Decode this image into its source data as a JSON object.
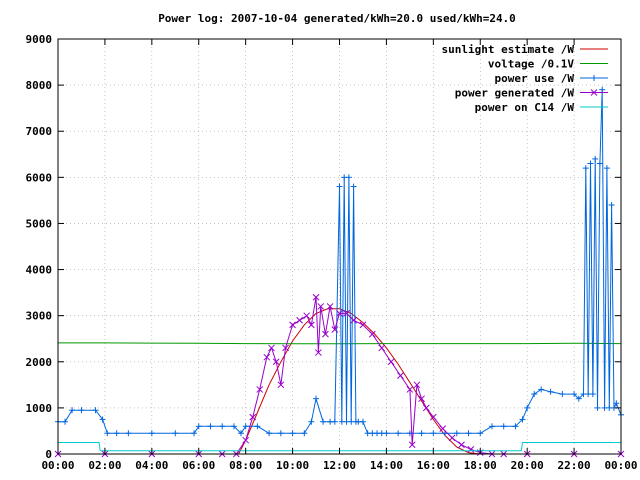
{
  "chart_data": {
    "type": "line",
    "title": "Power log: 2007-10-04 generated/kWh=20.0 used/kWh=24.0",
    "xlabel": "",
    "ylabel": "",
    "xlim": [
      0,
      24
    ],
    "ylim": [
      0,
      9000
    ],
    "x_ticks": [
      0,
      2,
      4,
      6,
      8,
      10,
      12,
      14,
      16,
      18,
      20,
      22,
      24
    ],
    "x_tick_labels": [
      "00:00",
      "02:00",
      "04:00",
      "06:00",
      "08:00",
      "10:00",
      "12:00",
      "14:00",
      "16:00",
      "18:00",
      "20:00",
      "22:00",
      "00:00"
    ],
    "y_ticks": [
      0,
      1000,
      2000,
      3000,
      4000,
      5000,
      6000,
      7000,
      8000,
      9000
    ],
    "y_tick_labels": [
      "0",
      "1000",
      "2000",
      "3000",
      "4000",
      "5000",
      "6000",
      "7000",
      "8000",
      "9000"
    ],
    "grid": true,
    "legend_position": "top-right",
    "series": [
      {
        "name": "sunlight estimate /W",
        "color": "#cc0000",
        "marker": "none",
        "x": [
          7.7,
          8.0,
          8.5,
          9.0,
          9.5,
          10.0,
          10.5,
          11.0,
          11.5,
          12.0,
          12.5,
          13.0,
          13.5,
          14.0,
          14.5,
          15.0,
          15.5,
          16.0,
          16.5,
          17.0,
          17.5,
          18.0
        ],
        "y": [
          0,
          300,
          900,
          1500,
          2000,
          2450,
          2800,
          3050,
          3150,
          3150,
          3050,
          2850,
          2600,
          2300,
          1950,
          1550,
          1150,
          750,
          400,
          150,
          30,
          0
        ]
      },
      {
        "name": "voltage /0.1V",
        "color": "#009900",
        "marker": "none",
        "x": [
          0,
          2,
          4,
          6,
          8,
          10,
          12,
          14,
          16,
          18,
          20,
          22,
          24
        ],
        "y": [
          2410,
          2410,
          2405,
          2400,
          2395,
          2390,
          2390,
          2395,
          2395,
          2395,
          2395,
          2400,
          2395
        ]
      },
      {
        "name": "power use /W",
        "color": "#0066dd",
        "marker": "plus",
        "x": [
          0.0,
          0.3,
          0.6,
          1.0,
          1.6,
          1.9,
          2.1,
          2.5,
          3.0,
          4.0,
          5.0,
          5.8,
          6.0,
          6.5,
          7.0,
          7.5,
          7.8,
          8.0,
          8.5,
          9.0,
          9.5,
          10.0,
          10.5,
          10.8,
          11.0,
          11.3,
          11.6,
          11.8,
          12.0,
          12.1,
          12.2,
          12.3,
          12.4,
          12.5,
          12.6,
          12.7,
          12.8,
          13.0,
          13.2,
          13.4,
          13.6,
          13.8,
          14.0,
          14.5,
          15.0,
          15.5,
          16.0,
          16.5,
          17.0,
          17.5,
          18.0,
          18.5,
          19.0,
          19.5,
          19.8,
          20.0,
          20.3,
          20.6,
          21.0,
          21.5,
          22.0,
          22.2,
          22.4,
          22.5,
          22.6,
          22.7,
          22.8,
          22.9,
          23.0,
          23.1,
          23.2,
          23.3,
          23.4,
          23.5,
          23.6,
          23.7,
          23.8,
          24.0
        ],
        "y": [
          700,
          700,
          950,
          950,
          950,
          750,
          450,
          450,
          450,
          450,
          450,
          450,
          600,
          600,
          600,
          600,
          450,
          600,
          600,
          450,
          450,
          450,
          450,
          700,
          1200,
          700,
          700,
          700,
          5800,
          700,
          6000,
          700,
          6000,
          700,
          5800,
          700,
          700,
          700,
          450,
          450,
          450,
          450,
          450,
          450,
          450,
          450,
          450,
          450,
          450,
          450,
          450,
          600,
          600,
          600,
          750,
          1000,
          1300,
          1400,
          1350,
          1300,
          1300,
          1200,
          1300,
          6200,
          1300,
          6300,
          1300,
          6400,
          1000,
          6300,
          7900,
          1000,
          6200,
          1000,
          5400,
          1000,
          1100,
          850
        ]
      },
      {
        "name": "power generated /W",
        "color": "#9900cc",
        "marker": "cross",
        "x": [
          0.0,
          2.0,
          4.0,
          6.0,
          7.0,
          7.6,
          8.0,
          8.3,
          8.6,
          8.9,
          9.1,
          9.3,
          9.5,
          9.7,
          10.0,
          10.3,
          10.6,
          10.8,
          11.0,
          11.1,
          11.2,
          11.4,
          11.6,
          11.8,
          12.0,
          12.3,
          12.6,
          13.0,
          13.4,
          13.8,
          14.2,
          14.6,
          15.0,
          15.1,
          15.3,
          15.5,
          15.7,
          16.0,
          16.4,
          16.8,
          17.2,
          17.6,
          18.0,
          18.5,
          19.0,
          20.0,
          22.0,
          24.0
        ],
        "y": [
          0,
          0,
          0,
          0,
          0,
          0,
          300,
          800,
          1400,
          2100,
          2300,
          2000,
          1500,
          2300,
          2800,
          2900,
          3000,
          2800,
          3400,
          2200,
          3200,
          2600,
          3200,
          2700,
          3050,
          3050,
          2900,
          2800,
          2600,
          2300,
          2000,
          1700,
          1400,
          200,
          1500,
          1200,
          1000,
          800,
          550,
          350,
          200,
          100,
          30,
          0,
          0,
          0,
          0,
          0
        ]
      },
      {
        "name": "power on C14 /W",
        "color": "#00cccc",
        "marker": "none",
        "x": [
          0.0,
          1.75,
          1.8,
          19.75,
          19.8,
          24.0
        ],
        "y": [
          250,
          250,
          70,
          70,
          250,
          250
        ]
      }
    ]
  }
}
